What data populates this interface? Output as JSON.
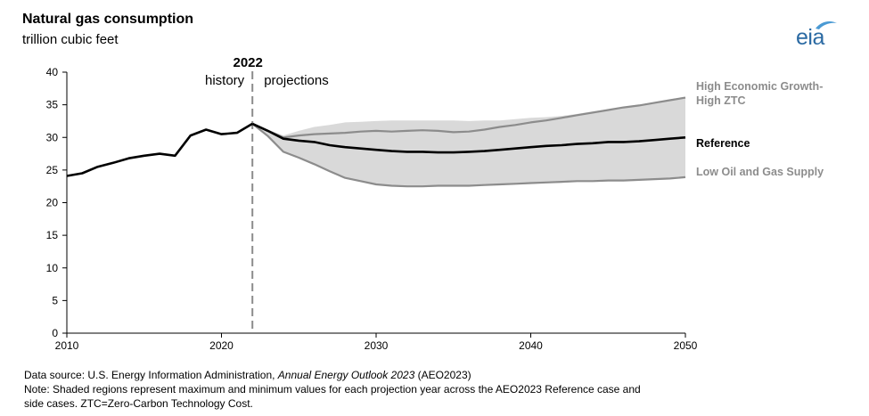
{
  "header": {
    "title": "Natural gas consumption",
    "subtitle": "trillion cubic feet"
  },
  "logo": {
    "text": "eia",
    "color": "#2b6aa3"
  },
  "chart_data": {
    "type": "line",
    "xlim": [
      2010,
      2050
    ],
    "ylim": [
      0,
      40
    ],
    "x_ticks": [
      2010,
      2020,
      2030,
      2040,
      2050
    ],
    "y_ticks": [
      0,
      5,
      10,
      15,
      20,
      25,
      30,
      35,
      40
    ],
    "grid": false,
    "divider": {
      "year": 2022,
      "label": "2022",
      "left_label": "history",
      "right_label": "projections"
    },
    "history": {
      "x": [
        2010,
        2011,
        2012,
        2013,
        2014,
        2015,
        2016,
        2017,
        2018,
        2019,
        2020,
        2021,
        2022
      ],
      "y": [
        24.1,
        24.5,
        25.5,
        26.1,
        26.8,
        27.2,
        27.5,
        27.2,
        30.3,
        31.2,
        30.5,
        30.7,
        32.1
      ],
      "color": "#000000"
    },
    "series": [
      {
        "name": "High Economic Growth-High ZTC",
        "color": "#8c8c8c",
        "x": [
          2022,
          2023,
          2024,
          2025,
          2026,
          2027,
          2028,
          2029,
          2030,
          2031,
          2032,
          2033,
          2034,
          2035,
          2036,
          2037,
          2038,
          2039,
          2040,
          2041,
          2042,
          2043,
          2044,
          2045,
          2046,
          2047,
          2048,
          2049,
          2050
        ],
        "values": [
          32.1,
          31.0,
          30.0,
          30.3,
          30.5,
          30.6,
          30.7,
          30.9,
          31.0,
          30.9,
          31.0,
          31.1,
          31.0,
          30.8,
          30.9,
          31.2,
          31.6,
          31.9,
          32.3,
          32.6,
          33.0,
          33.4,
          33.8,
          34.2,
          34.6,
          34.9,
          35.3,
          35.7,
          36.1
        ]
      },
      {
        "name": "Reference",
        "color": "#000000",
        "x": [
          2022,
          2023,
          2024,
          2025,
          2026,
          2027,
          2028,
          2029,
          2030,
          2031,
          2032,
          2033,
          2034,
          2035,
          2036,
          2037,
          2038,
          2039,
          2040,
          2041,
          2042,
          2043,
          2044,
          2045,
          2046,
          2047,
          2048,
          2049,
          2050
        ],
        "values": [
          32.1,
          31.0,
          29.8,
          29.5,
          29.3,
          28.8,
          28.5,
          28.3,
          28.1,
          27.9,
          27.8,
          27.8,
          27.7,
          27.7,
          27.8,
          27.9,
          28.1,
          28.3,
          28.5,
          28.7,
          28.8,
          29.0,
          29.1,
          29.3,
          29.3,
          29.4,
          29.6,
          29.8,
          30.0
        ]
      },
      {
        "name": "Low Oil and Gas Supply",
        "color": "#8c8c8c",
        "x": [
          2022,
          2023,
          2024,
          2025,
          2026,
          2027,
          2028,
          2029,
          2030,
          2031,
          2032,
          2033,
          2034,
          2035,
          2036,
          2037,
          2038,
          2039,
          2040,
          2041,
          2042,
          2043,
          2044,
          2045,
          2046,
          2047,
          2048,
          2049,
          2050
        ],
        "values": [
          32.1,
          30.2,
          27.8,
          26.9,
          25.9,
          24.8,
          23.8,
          23.3,
          22.8,
          22.6,
          22.5,
          22.5,
          22.6,
          22.6,
          22.6,
          22.7,
          22.8,
          22.9,
          23.0,
          23.1,
          23.2,
          23.3,
          23.3,
          23.4,
          23.4,
          23.5,
          23.6,
          23.7,
          23.9
        ]
      }
    ],
    "range_band": {
      "color": "#d9d9d9",
      "x": [
        2022,
        2023,
        2024,
        2025,
        2026,
        2027,
        2028,
        2029,
        2030,
        2031,
        2032,
        2033,
        2034,
        2035,
        2036,
        2037,
        2038,
        2039,
        2040,
        2041,
        2042,
        2043,
        2044,
        2045,
        2046,
        2047,
        2048,
        2049,
        2050
      ],
      "max": [
        32.1,
        31.2,
        30.3,
        31.0,
        31.6,
        31.9,
        32.3,
        32.4,
        32.5,
        32.6,
        32.6,
        32.6,
        32.6,
        32.6,
        32.5,
        32.6,
        32.6,
        32.8,
        33.0,
        33.1,
        33.3,
        33.6,
        34.0,
        34.3,
        34.7,
        35.0,
        35.4,
        35.8,
        36.1
      ],
      "min": [
        32.1,
        30.2,
        27.8,
        26.9,
        25.9,
        24.8,
        23.8,
        23.3,
        22.8,
        22.6,
        22.5,
        22.5,
        22.6,
        22.6,
        22.6,
        22.7,
        22.8,
        22.9,
        23.0,
        23.1,
        23.2,
        23.3,
        23.3,
        23.4,
        23.4,
        23.5,
        23.6,
        23.7,
        23.9
      ]
    },
    "labels": [
      {
        "lines": [
          "High Economic Growth-",
          "High ZTC"
        ],
        "color": "#8c8c8c",
        "bold": true
      },
      {
        "lines": [
          "Reference"
        ],
        "color": "#000000",
        "bold": true
      },
      {
        "lines": [
          "Low Oil and Gas Supply"
        ],
        "color": "#8c8c8c",
        "bold": true
      }
    ]
  },
  "footer": {
    "source_prefix": "Data source: U.S. Energy Information Administration, ",
    "source_title": "Annual Energy Outlook 2023",
    "source_suffix": " (AEO2023)",
    "note_line1": "Note: Shaded regions represent maximum and minimum values for each projection year across the AEO2023 Reference case and",
    "note_line2": "side cases. ZTC=Zero-Carbon Technology Cost."
  }
}
